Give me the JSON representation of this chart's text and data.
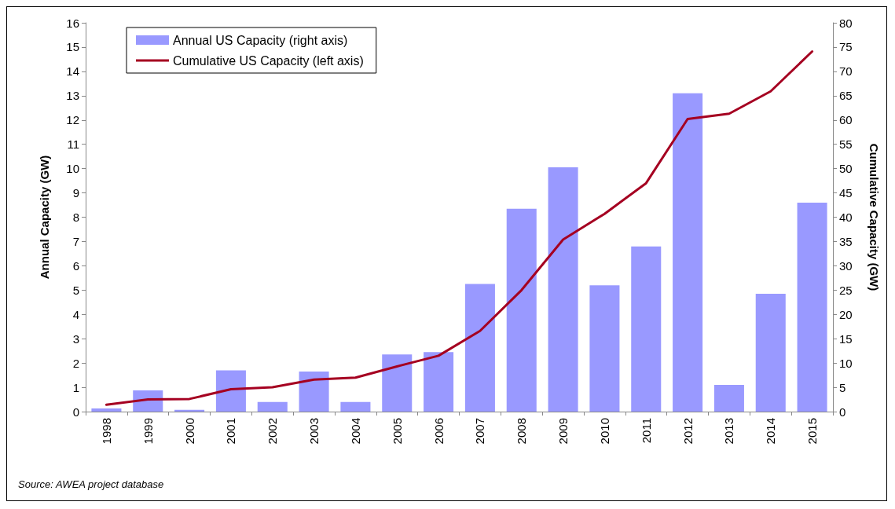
{
  "chart_data": {
    "type": "bar",
    "ylabel": "Annual Capacity (GW)",
    "y2label": "Cumulative Capacity (GW)",
    "categories": [
      "1998",
      "1999",
      "2000",
      "2001",
      "2002",
      "2003",
      "2004",
      "2005",
      "2006",
      "2007",
      "2008",
      "2009",
      "2010",
      "2011",
      "2012",
      "2013",
      "2014",
      "2015"
    ],
    "series": [
      {
        "name": "Annual US Capacity (right axis)",
        "color": "#9999ff",
        "values": [
          0.13,
          0.87,
          0.07,
          1.7,
          0.4,
          1.65,
          0.4,
          2.35,
          2.45,
          5.25,
          8.35,
          10.05,
          5.2,
          6.8,
          13.1,
          1.1,
          4.85,
          8.6
        ]
      },
      {
        "name": "Cumulative US Capacity (left axis)",
        "type": "line",
        "axis": "y2",
        "color": "#a50021",
        "values": [
          1.4,
          2.5,
          2.6,
          4.6,
          5.0,
          6.6,
          7.0,
          9.3,
          11.5,
          16.6,
          25,
          35.4,
          40.7,
          47,
          60.2,
          61.3,
          65.9,
          74.1
        ]
      }
    ],
    "ylim": [
      0,
      16
    ],
    "yticks": [
      0,
      1,
      2,
      3,
      4,
      5,
      6,
      7,
      8,
      9,
      10,
      11,
      12,
      13,
      14,
      15,
      16
    ],
    "y2lim": [
      0,
      80
    ],
    "y2ticks": [
      0,
      5,
      10,
      15,
      20,
      25,
      30,
      35,
      40,
      45,
      50,
      55,
      60,
      65,
      70,
      75,
      80
    ],
    "grid": false,
    "legend": "top left",
    "marker": "none",
    "line_style": "solid",
    "annotations": [
      "Source: AWEA project database"
    ]
  }
}
